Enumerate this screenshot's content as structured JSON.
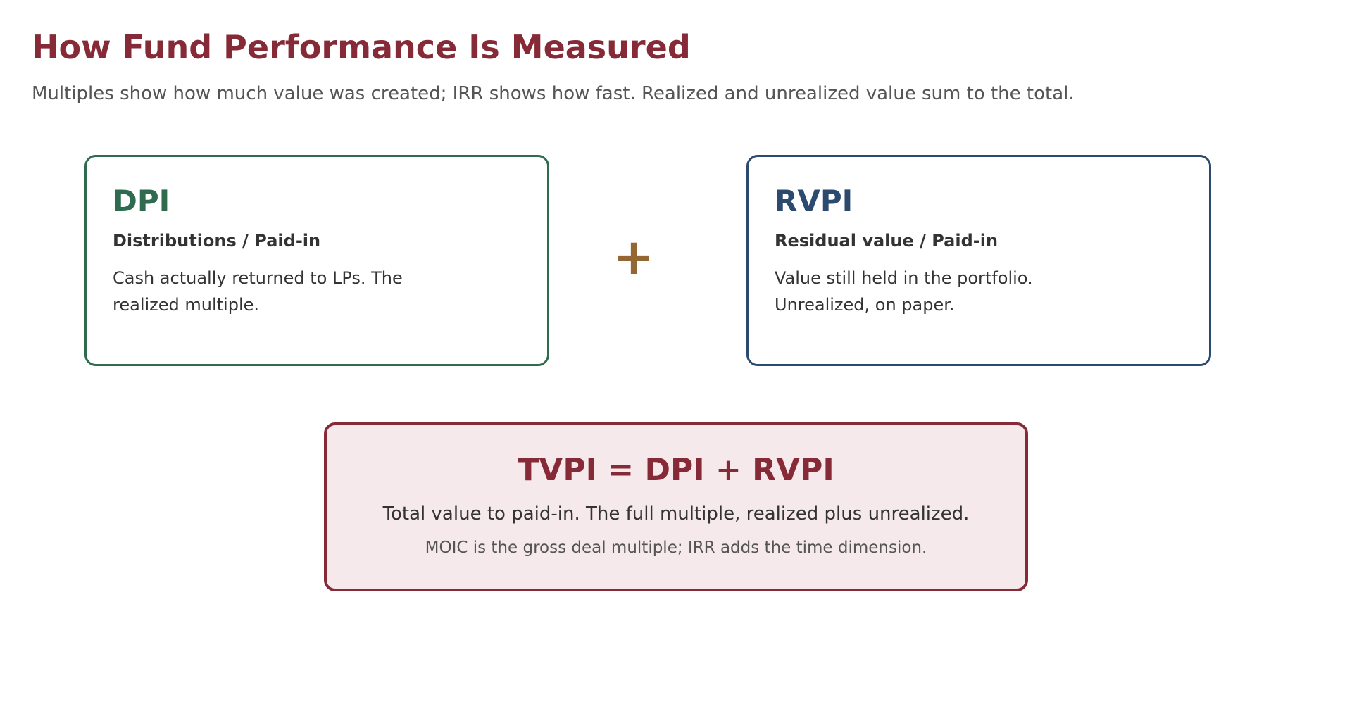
{
  "header": {
    "title": "How Fund Performance Is Measured",
    "subtitle": "Multiples show how much value was created; IRR shows how fast. Realized and unrealized value sum to the total."
  },
  "cards": [
    {
      "title": "DPI",
      "formula": "Distributions / Paid-in",
      "description": "Cash actually returned to LPs. The realized multiple."
    },
    {
      "title": "RVPI",
      "formula": "Residual value / Paid-in",
      "description": "Value still held in the portfolio. Unrealized, on paper."
    }
  ],
  "operator": "+",
  "summary": {
    "title": "TVPI = DPI + RVPI",
    "description": "Total value to paid-in. The full multiple, realized plus unrealized.",
    "note": "MOIC is the gross deal multiple; IRR adds the time dimension."
  }
}
